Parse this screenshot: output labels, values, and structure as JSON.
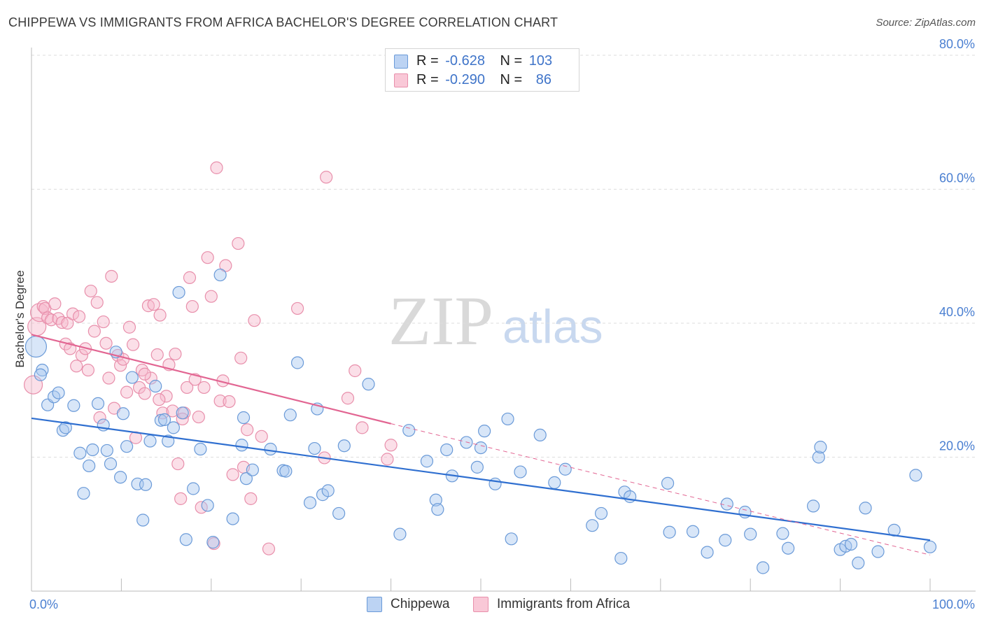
{
  "header": {
    "title": "CHIPPEWA VS IMMIGRANTS FROM AFRICA BACHELOR'S DEGREE CORRELATION CHART",
    "source": "Source: ZipAtlas.com"
  },
  "watermark": {
    "zip": "ZIP",
    "atlas": "atlas"
  },
  "legend_top": {
    "rows": [
      {
        "r_label": "R =",
        "r_value": "-0.628",
        "n_label": "N =",
        "n_value": "103"
      },
      {
        "r_label": "R =",
        "r_value": "-0.290",
        "n_label": "N =",
        "n_value": "86"
      }
    ]
  },
  "legend_bottom": {
    "series1": "Chippewa",
    "series2": "Immigrants from Africa"
  },
  "colors": {
    "series1_fill": "#a9c7f0",
    "series1_stroke": "#6a9ad8",
    "series1_line": "#2f6fd0",
    "series2_fill": "#f6b8cb",
    "series2_stroke": "#e88fab",
    "series2_line": "#e26592",
    "grid": "#dddddd",
    "tick_text": "#4a7fd1"
  },
  "chart_data": {
    "type": "scatter",
    "title": "CHIPPEWA VS IMMIGRANTS FROM AFRICA BACHELOR'S DEGREE CORRELATION CHART",
    "xlabel": "",
    "ylabel": "Bachelor's Degree",
    "xlim": [
      0,
      100
    ],
    "ylim": [
      0,
      80
    ],
    "x_tick_labels": [
      "0.0%",
      "100.0%"
    ],
    "y_ticks": [
      20,
      40,
      60,
      80
    ],
    "y_tick_labels": [
      "20.0%",
      "40.0%",
      "60.0%",
      "80.0%"
    ],
    "grid": true,
    "legend_position": "top-center",
    "series": [
      {
        "name": "Chippewa",
        "r": -0.628,
        "n": 103,
        "trend": {
          "x": [
            0,
            100
          ],
          "y": [
            25.8,
            7.6
          ]
        },
        "points": [
          [
            0.5,
            36.5
          ],
          [
            1.2,
            33.0
          ],
          [
            1.0,
            32.3
          ],
          [
            1.8,
            27.8
          ],
          [
            2.5,
            29.0
          ],
          [
            3.0,
            29.6
          ],
          [
            3.5,
            24.0
          ],
          [
            3.8,
            24.4
          ],
          [
            4.7,
            27.7
          ],
          [
            5.4,
            20.6
          ],
          [
            5.8,
            14.6
          ],
          [
            6.4,
            18.7
          ],
          [
            6.8,
            21.1
          ],
          [
            7.4,
            28.0
          ],
          [
            8.0,
            24.8
          ],
          [
            8.4,
            21.0
          ],
          [
            8.8,
            19.0
          ],
          [
            9.4,
            35.7
          ],
          [
            9.9,
            17.0
          ],
          [
            10.2,
            26.5
          ],
          [
            10.6,
            21.6
          ],
          [
            11.2,
            31.9
          ],
          [
            11.8,
            16.0
          ],
          [
            12.4,
            10.6
          ],
          [
            12.7,
            15.9
          ],
          [
            13.2,
            22.4
          ],
          [
            13.8,
            30.6
          ],
          [
            14.4,
            25.5
          ],
          [
            14.8,
            25.6
          ],
          [
            15.2,
            22.4
          ],
          [
            15.8,
            24.4
          ],
          [
            16.4,
            44.6
          ],
          [
            16.8,
            26.6
          ],
          [
            17.2,
            7.7
          ],
          [
            18.0,
            15.3
          ],
          [
            18.8,
            21.2
          ],
          [
            19.6,
            12.8
          ],
          [
            20.2,
            7.3
          ],
          [
            21.0,
            47.2
          ],
          [
            22.4,
            10.8
          ],
          [
            23.4,
            21.8
          ],
          [
            23.6,
            25.9
          ],
          [
            23.9,
            16.8
          ],
          [
            24.6,
            18.1
          ],
          [
            26.6,
            21.2
          ],
          [
            28.0,
            18.0
          ],
          [
            28.3,
            17.9
          ],
          [
            28.8,
            26.3
          ],
          [
            29.6,
            34.1
          ],
          [
            31.0,
            13.2
          ],
          [
            31.5,
            21.3
          ],
          [
            31.8,
            27.2
          ],
          [
            32.4,
            14.4
          ],
          [
            33.0,
            15.0
          ],
          [
            34.2,
            11.6
          ],
          [
            34.8,
            21.7
          ],
          [
            37.5,
            30.9
          ],
          [
            41.0,
            8.5
          ],
          [
            42.0,
            24.0
          ],
          [
            44.0,
            19.4
          ],
          [
            45.0,
            13.6
          ],
          [
            45.2,
            12.2
          ],
          [
            46.2,
            21.1
          ],
          [
            46.8,
            17.2
          ],
          [
            48.4,
            22.2
          ],
          [
            49.6,
            18.5
          ],
          [
            50.0,
            21.4
          ],
          [
            50.4,
            23.9
          ],
          [
            51.6,
            16.0
          ],
          [
            53.0,
            25.7
          ],
          [
            53.4,
            7.8
          ],
          [
            54.4,
            17.8
          ],
          [
            56.6,
            23.3
          ],
          [
            58.2,
            16.2
          ],
          [
            59.4,
            18.2
          ],
          [
            62.4,
            9.8
          ],
          [
            63.4,
            11.6
          ],
          [
            65.6,
            4.9
          ],
          [
            66.0,
            14.8
          ],
          [
            66.6,
            14.1
          ],
          [
            70.8,
            16.1
          ],
          [
            71.0,
            8.8
          ],
          [
            73.6,
            8.9
          ],
          [
            75.2,
            5.8
          ],
          [
            77.2,
            7.6
          ],
          [
            77.4,
            13.0
          ],
          [
            79.4,
            11.8
          ],
          [
            80.0,
            8.5
          ],
          [
            81.4,
            3.5
          ],
          [
            83.6,
            8.6
          ],
          [
            84.2,
            6.4
          ],
          [
            87.0,
            12.7
          ],
          [
            87.6,
            20.0
          ],
          [
            87.8,
            21.5
          ],
          [
            90.0,
            6.2
          ],
          [
            90.6,
            6.7
          ],
          [
            91.2,
            7.0
          ],
          [
            92.0,
            4.2
          ],
          [
            92.8,
            12.4
          ],
          [
            94.2,
            5.9
          ],
          [
            96.0,
            9.1
          ],
          [
            98.4,
            17.3
          ],
          [
            100.0,
            6.6
          ]
        ]
      },
      {
        "name": "Immigrants from Africa",
        "r": -0.29,
        "n": 86,
        "trend": {
          "x": [
            0,
            40
          ],
          "y": [
            38.3,
            25.0
          ],
          "dashed_extension": {
            "x": [
              40,
              100
            ],
            "y": [
              25.0,
              5.4
            ]
          }
        },
        "points": [
          [
            0.2,
            30.8
          ],
          [
            0.6,
            39.5
          ],
          [
            0.9,
            41.6
          ],
          [
            1.3,
            42.5
          ],
          [
            1.5,
            42.2
          ],
          [
            1.8,
            40.8
          ],
          [
            2.2,
            40.5
          ],
          [
            2.6,
            42.9
          ],
          [
            3.0,
            40.7
          ],
          [
            3.4,
            40.1
          ],
          [
            3.8,
            36.9
          ],
          [
            4.0,
            40.0
          ],
          [
            4.3,
            36.2
          ],
          [
            4.6,
            41.4
          ],
          [
            5.0,
            33.6
          ],
          [
            5.3,
            41.0
          ],
          [
            5.6,
            35.2
          ],
          [
            6.0,
            36.2
          ],
          [
            6.3,
            33.0
          ],
          [
            6.6,
            44.8
          ],
          [
            7.0,
            38.8
          ],
          [
            7.3,
            43.1
          ],
          [
            7.6,
            25.9
          ],
          [
            8.0,
            40.2
          ],
          [
            8.3,
            37.0
          ],
          [
            8.6,
            31.8
          ],
          [
            8.9,
            47.0
          ],
          [
            9.2,
            27.3
          ],
          [
            9.6,
            35.2
          ],
          [
            9.9,
            33.7
          ],
          [
            10.2,
            34.6
          ],
          [
            10.6,
            29.7
          ],
          [
            10.9,
            39.4
          ],
          [
            11.3,
            36.8
          ],
          [
            11.6,
            22.9
          ],
          [
            12.0,
            30.4
          ],
          [
            12.3,
            33.0
          ],
          [
            12.6,
            29.5
          ],
          [
            13.0,
            42.6
          ],
          [
            13.3,
            31.8
          ],
          [
            13.6,
            42.8
          ],
          [
            14.0,
            35.3
          ],
          [
            14.3,
            41.2
          ],
          [
            14.6,
            26.6
          ],
          [
            15.0,
            29.1
          ],
          [
            15.3,
            33.8
          ],
          [
            15.7,
            26.9
          ],
          [
            16.0,
            35.4
          ],
          [
            16.3,
            19.0
          ],
          [
            16.6,
            13.8
          ],
          [
            17.0,
            26.6
          ],
          [
            17.3,
            30.4
          ],
          [
            17.6,
            46.8
          ],
          [
            17.9,
            42.5
          ],
          [
            18.2,
            31.6
          ],
          [
            18.6,
            26.0
          ],
          [
            18.9,
            12.5
          ],
          [
            19.2,
            30.4
          ],
          [
            19.6,
            49.8
          ],
          [
            20.0,
            44.0
          ],
          [
            20.3,
            7.1
          ],
          [
            20.6,
            63.2
          ],
          [
            21.0,
            28.4
          ],
          [
            21.3,
            31.4
          ],
          [
            21.6,
            48.6
          ],
          [
            22.0,
            28.3
          ],
          [
            22.4,
            17.4
          ],
          [
            23.0,
            51.9
          ],
          [
            23.3,
            34.8
          ],
          [
            23.6,
            18.5
          ],
          [
            24.0,
            24.1
          ],
          [
            24.4,
            13.8
          ],
          [
            24.8,
            40.4
          ],
          [
            25.6,
            23.1
          ],
          [
            26.4,
            6.3
          ],
          [
            29.6,
            42.2
          ],
          [
            32.6,
            19.9
          ],
          [
            32.8,
            61.8
          ],
          [
            35.2,
            28.8
          ],
          [
            36.0,
            32.9
          ],
          [
            36.8,
            24.4
          ],
          [
            39.6,
            19.7
          ],
          [
            40.0,
            21.8
          ],
          [
            12.6,
            32.4
          ],
          [
            14.2,
            28.6
          ],
          [
            16.8,
            25.7
          ]
        ]
      }
    ]
  }
}
